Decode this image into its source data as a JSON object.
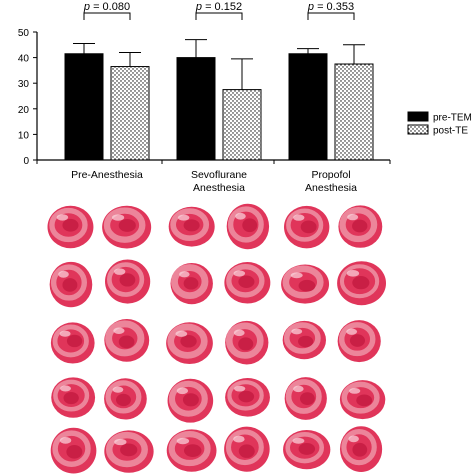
{
  "chart_data": {
    "type": "bar",
    "categories": [
      [
        "Pre-Anesthesia"
      ],
      [
        "Sevoflurane",
        "Anesthesia"
      ],
      [
        "Propofol",
        "Anesthesia"
      ]
    ],
    "series": [
      {
        "name": "pre-TEM",
        "values": [
          41.5,
          40.0,
          41.5
        ],
        "errors": [
          4.0,
          7.0,
          2.0
        ],
        "fill": "#000000"
      },
      {
        "name": "post-TE",
        "values": [
          36.5,
          27.5,
          37.5
        ],
        "errors": [
          5.5,
          12.0,
          7.5
        ],
        "fill": "dotted"
      }
    ],
    "annotations": [
      "p = 0.080",
      "p = 0.152",
      "p = 0.353"
    ],
    "yticks": [
      0,
      10,
      20,
      30,
      40,
      50
    ],
    "ylim": [
      0,
      55
    ],
    "legend": "right"
  },
  "photo_panel": {
    "grid": "5 rows × 6 columns of stained tissue slices",
    "colors": {
      "tissue": "#e0355a",
      "rim": "#f0a0b0"
    }
  }
}
